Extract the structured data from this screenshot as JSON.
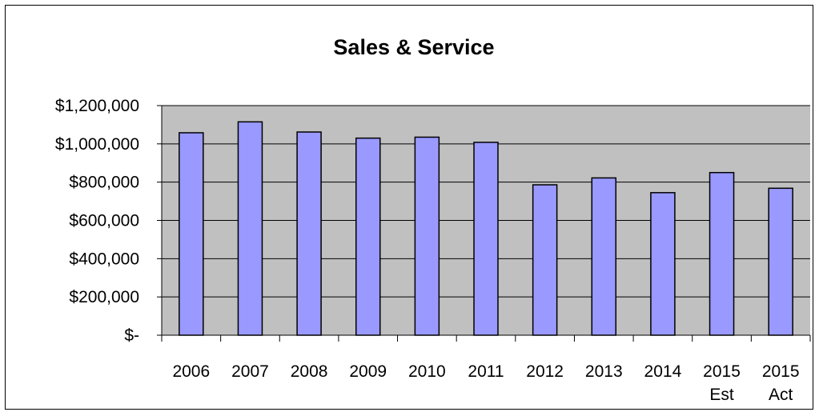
{
  "chart_data": {
    "type": "bar",
    "title": "Sales & Service",
    "categories": [
      [
        "2006"
      ],
      [
        "2007"
      ],
      [
        "2008"
      ],
      [
        "2009"
      ],
      [
        "2010"
      ],
      [
        "2011"
      ],
      [
        "2012"
      ],
      [
        "2013"
      ],
      [
        "2014"
      ],
      [
        "2015",
        "Est"
      ],
      [
        "2015",
        "Act"
      ]
    ],
    "values": [
      1058000,
      1115000,
      1062000,
      1030000,
      1035000,
      1008000,
      786000,
      822000,
      745000,
      850000,
      768000
    ],
    "ylim": [
      0,
      1200000
    ],
    "yticks": [
      0,
      200000,
      400000,
      600000,
      800000,
      1000000,
      1200000
    ],
    "ytick_labels": [
      "$-",
      "$200,000",
      "$400,000",
      "$600,000",
      "$800,000",
      "$1,000,000",
      "$1,200,000"
    ],
    "grid": true,
    "colors": {
      "bar_fill": "#9999ff",
      "bar_stroke": "#000000",
      "plot_background": "#c0c0c0",
      "gridline": "#000000"
    }
  }
}
